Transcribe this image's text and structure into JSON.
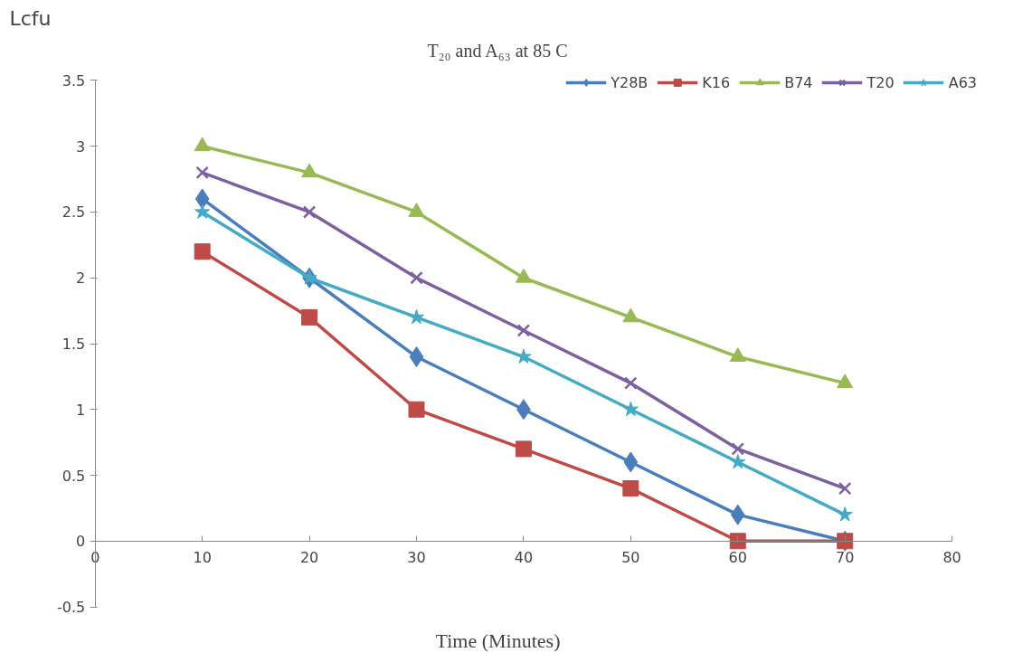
{
  "chart_data": {
    "type": "line",
    "title": "T₂₀ and A₆₃ at 85 C",
    "xlabel": "Time (Minutes)",
    "ylabel": "Lcfu",
    "x": [
      10,
      20,
      30,
      40,
      50,
      60,
      70
    ],
    "series": [
      {
        "name": "Y28B",
        "color": "#4a7ebb",
        "marker": "diamond",
        "values": [
          2.6,
          2.0,
          1.4,
          1.0,
          0.6,
          0.2,
          0.0
        ]
      },
      {
        "name": "K16",
        "color": "#be4b48",
        "marker": "square",
        "values": [
          2.2,
          1.7,
          1.0,
          0.7,
          0.4,
          0.0,
          0.0
        ]
      },
      {
        "name": "B74",
        "color": "#98b954",
        "marker": "triangle",
        "values": [
          3.0,
          2.8,
          2.5,
          2.0,
          1.7,
          1.4,
          1.2
        ]
      },
      {
        "name": "T20",
        "color": "#7d60a0",
        "marker": "cross",
        "values": [
          2.8,
          2.5,
          2.0,
          1.6,
          1.2,
          0.7,
          0.4
        ]
      },
      {
        "name": "A63",
        "color": "#46aac5",
        "marker": "star",
        "values": [
          2.5,
          2.0,
          1.7,
          1.4,
          1.0,
          0.6,
          0.2
        ]
      }
    ],
    "xlim": [
      0,
      80
    ],
    "xticks": [
      0,
      10,
      20,
      30,
      40,
      50,
      60,
      70,
      80
    ],
    "ylim": [
      -0.5,
      3.5
    ],
    "yticks": [
      -0.5,
      0,
      0.5,
      1,
      1.5,
      2,
      2.5,
      3,
      3.5
    ],
    "grid": false,
    "legend": "top right",
    "line_style": "solid"
  }
}
